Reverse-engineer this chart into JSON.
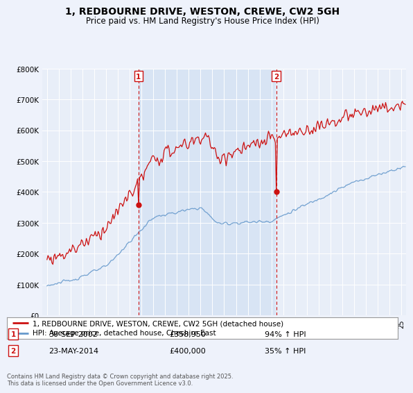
{
  "title": "1, REDBOURNE DRIVE, WESTON, CREWE, CW2 5GH",
  "subtitle": "Price paid vs. HM Land Registry's House Price Index (HPI)",
  "red_label": "1, REDBOURNE DRIVE, WESTON, CREWE, CW2 5GH (detached house)",
  "blue_label": "HPI: Average price, detached house, Cheshire East",
  "transaction1_date": "30-SEP-2002",
  "transaction1_price": "£358,950",
  "transaction1_hpi": "94% ↑ HPI",
  "transaction2_date": "23-MAY-2014",
  "transaction2_price": "£400,000",
  "transaction2_hpi": "35% ↑ HPI",
  "footer": "Contains HM Land Registry data © Crown copyright and database right 2025.\nThis data is licensed under the Open Government Licence v3.0.",
  "vline1_x": 2002.75,
  "vline2_x": 2014.4,
  "point1_red_y": 358950,
  "point2_red_y": 400000,
  "ylim": [
    0,
    800000
  ],
  "xlim": [
    1994.6,
    2025.4
  ],
  "background_color": "#eef2fb",
  "plot_bg_color": "#e8eef8",
  "shade_bg_color": "#d8e4f4",
  "red_color": "#cc1111",
  "blue_color": "#6699cc",
  "grid_color": "#ffffff",
  "vline_color": "#cc1111",
  "title_fontsize": 10,
  "subtitle_fontsize": 8.5
}
